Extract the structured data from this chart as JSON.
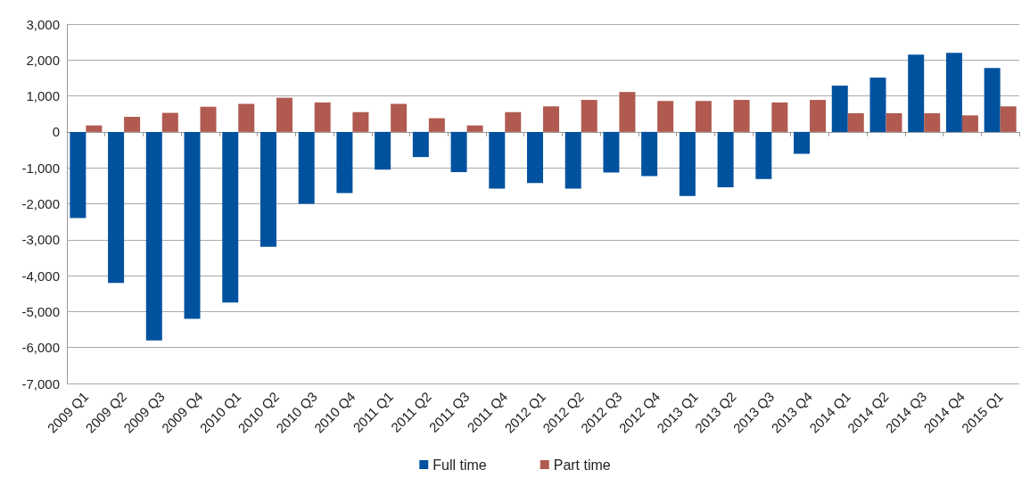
{
  "chart_data": {
    "type": "bar",
    "categories": [
      "2009 Q1",
      "2009 Q2",
      "2009 Q3",
      "2009 Q4",
      "2010 Q1",
      "2010 Q2",
      "2010 Q3",
      "2010 Q4",
      "2011 Q1",
      "2011 Q2",
      "2011 Q3",
      "2011 Q4",
      "2012 Q1",
      "2012 Q2",
      "2012 Q3",
      "2012 Q4",
      "2013 Q1",
      "2013 Q2",
      "2013 Q3",
      "2013 Q4",
      "2014 Q1",
      "2014 Q2",
      "2014 Q3",
      "2014 Q4",
      "2015 Q1"
    ],
    "series": [
      {
        "name": "Full time",
        "color": "#00529f",
        "values": [
          -2400,
          -4200,
          -5800,
          -5200,
          -4750,
          -3200,
          -2000,
          -1700,
          -1050,
          -700,
          -1120,
          -1580,
          -1420,
          -1580,
          -1130,
          -1230,
          -1780,
          -1540,
          -1310,
          -610,
          1290,
          1510,
          2150,
          2200,
          1780
        ]
      },
      {
        "name": "Part time",
        "color": "#b05a50",
        "values": [
          180,
          420,
          530,
          700,
          780,
          950,
          820,
          550,
          780,
          380,
          180,
          550,
          710,
          890,
          1110,
          860,
          860,
          890,
          820,
          890,
          520,
          520,
          520,
          460,
          710
        ]
      }
    ],
    "ylim": [
      -7000,
      3000
    ],
    "yticks": [
      {
        "value": -7000,
        "label": "-7,000"
      },
      {
        "value": -6000,
        "label": "-6,000"
      },
      {
        "value": -5000,
        "label": "-5,000"
      },
      {
        "value": -4000,
        "label": "-4,000"
      },
      {
        "value": -3000,
        "label": "-3,000"
      },
      {
        "value": -2000,
        "label": "-2,000"
      },
      {
        "value": -1000,
        "label": "-1,000"
      },
      0,
      {
        "value": 1000,
        "label": "1,000"
      },
      {
        "value": 2000,
        "label": "2,000"
      },
      {
        "value": 3000,
        "label": "3,000"
      }
    ],
    "grid": "y",
    "legend": "bottom"
  }
}
